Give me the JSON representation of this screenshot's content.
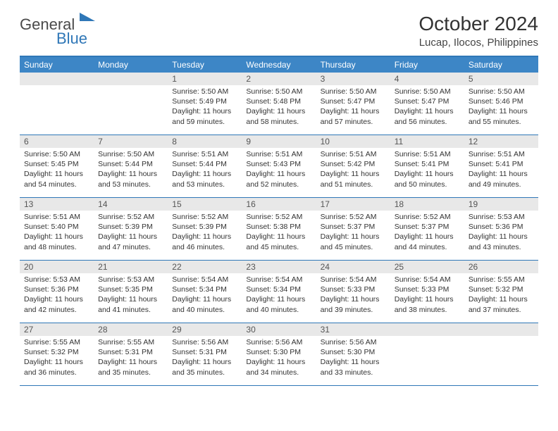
{
  "logo": {
    "text1": "General",
    "text2": "Blue",
    "shape_color": "#2f77b7",
    "text_color": "#4a4a4a"
  },
  "header": {
    "month_title": "October 2024",
    "location": "Lucap, Ilocos, Philippines"
  },
  "colors": {
    "header_bg": "#3d86c6",
    "border": "#2f77b7",
    "daynum_bg": "#e8e8e8"
  },
  "weekdays": [
    "Sunday",
    "Monday",
    "Tuesday",
    "Wednesday",
    "Thursday",
    "Friday",
    "Saturday"
  ],
  "weeks": [
    [
      {
        "n": "",
        "sr": "",
        "ss": "",
        "dl": ""
      },
      {
        "n": "",
        "sr": "",
        "ss": "",
        "dl": ""
      },
      {
        "n": "1",
        "sr": "5:50 AM",
        "ss": "5:49 PM",
        "dl": "11 hours and 59 minutes."
      },
      {
        "n": "2",
        "sr": "5:50 AM",
        "ss": "5:48 PM",
        "dl": "11 hours and 58 minutes."
      },
      {
        "n": "3",
        "sr": "5:50 AM",
        "ss": "5:47 PM",
        "dl": "11 hours and 57 minutes."
      },
      {
        "n": "4",
        "sr": "5:50 AM",
        "ss": "5:47 PM",
        "dl": "11 hours and 56 minutes."
      },
      {
        "n": "5",
        "sr": "5:50 AM",
        "ss": "5:46 PM",
        "dl": "11 hours and 55 minutes."
      }
    ],
    [
      {
        "n": "6",
        "sr": "5:50 AM",
        "ss": "5:45 PM",
        "dl": "11 hours and 54 minutes."
      },
      {
        "n": "7",
        "sr": "5:50 AM",
        "ss": "5:44 PM",
        "dl": "11 hours and 53 minutes."
      },
      {
        "n": "8",
        "sr": "5:51 AM",
        "ss": "5:44 PM",
        "dl": "11 hours and 53 minutes."
      },
      {
        "n": "9",
        "sr": "5:51 AM",
        "ss": "5:43 PM",
        "dl": "11 hours and 52 minutes."
      },
      {
        "n": "10",
        "sr": "5:51 AM",
        "ss": "5:42 PM",
        "dl": "11 hours and 51 minutes."
      },
      {
        "n": "11",
        "sr": "5:51 AM",
        "ss": "5:41 PM",
        "dl": "11 hours and 50 minutes."
      },
      {
        "n": "12",
        "sr": "5:51 AM",
        "ss": "5:41 PM",
        "dl": "11 hours and 49 minutes."
      }
    ],
    [
      {
        "n": "13",
        "sr": "5:51 AM",
        "ss": "5:40 PM",
        "dl": "11 hours and 48 minutes."
      },
      {
        "n": "14",
        "sr": "5:52 AM",
        "ss": "5:39 PM",
        "dl": "11 hours and 47 minutes."
      },
      {
        "n": "15",
        "sr": "5:52 AM",
        "ss": "5:39 PM",
        "dl": "11 hours and 46 minutes."
      },
      {
        "n": "16",
        "sr": "5:52 AM",
        "ss": "5:38 PM",
        "dl": "11 hours and 45 minutes."
      },
      {
        "n": "17",
        "sr": "5:52 AM",
        "ss": "5:37 PM",
        "dl": "11 hours and 45 minutes."
      },
      {
        "n": "18",
        "sr": "5:52 AM",
        "ss": "5:37 PM",
        "dl": "11 hours and 44 minutes."
      },
      {
        "n": "19",
        "sr": "5:53 AM",
        "ss": "5:36 PM",
        "dl": "11 hours and 43 minutes."
      }
    ],
    [
      {
        "n": "20",
        "sr": "5:53 AM",
        "ss": "5:36 PM",
        "dl": "11 hours and 42 minutes."
      },
      {
        "n": "21",
        "sr": "5:53 AM",
        "ss": "5:35 PM",
        "dl": "11 hours and 41 minutes."
      },
      {
        "n": "22",
        "sr": "5:54 AM",
        "ss": "5:34 PM",
        "dl": "11 hours and 40 minutes."
      },
      {
        "n": "23",
        "sr": "5:54 AM",
        "ss": "5:34 PM",
        "dl": "11 hours and 40 minutes."
      },
      {
        "n": "24",
        "sr": "5:54 AM",
        "ss": "5:33 PM",
        "dl": "11 hours and 39 minutes."
      },
      {
        "n": "25",
        "sr": "5:54 AM",
        "ss": "5:33 PM",
        "dl": "11 hours and 38 minutes."
      },
      {
        "n": "26",
        "sr": "5:55 AM",
        "ss": "5:32 PM",
        "dl": "11 hours and 37 minutes."
      }
    ],
    [
      {
        "n": "27",
        "sr": "5:55 AM",
        "ss": "5:32 PM",
        "dl": "11 hours and 36 minutes."
      },
      {
        "n": "28",
        "sr": "5:55 AM",
        "ss": "5:31 PM",
        "dl": "11 hours and 35 minutes."
      },
      {
        "n": "29",
        "sr": "5:56 AM",
        "ss": "5:31 PM",
        "dl": "11 hours and 35 minutes."
      },
      {
        "n": "30",
        "sr": "5:56 AM",
        "ss": "5:30 PM",
        "dl": "11 hours and 34 minutes."
      },
      {
        "n": "31",
        "sr": "5:56 AM",
        "ss": "5:30 PM",
        "dl": "11 hours and 33 minutes."
      },
      {
        "n": "",
        "sr": "",
        "ss": "",
        "dl": ""
      },
      {
        "n": "",
        "sr": "",
        "ss": "",
        "dl": ""
      }
    ]
  ],
  "labels": {
    "sunrise": "Sunrise:",
    "sunset": "Sunset:",
    "daylight": "Daylight:"
  }
}
